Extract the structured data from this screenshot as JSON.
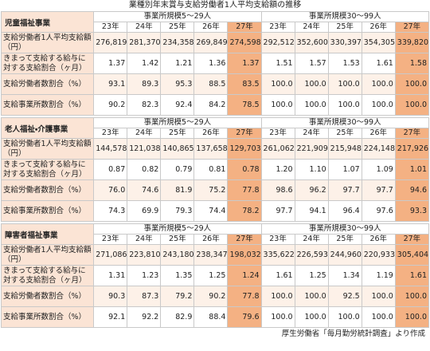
{
  "title": "業種別年末賞与支給労働者1人平均支給額の推移",
  "sections": [
    {
      "name": "児童福祉事業",
      "groups": [
        {
          "name": "事業所規模5～29人",
          "years": [
            "23年",
            "24年",
            "25年",
            "26年",
            "27年"
          ]
        },
        {
          "name": "事業所規模30～99人",
          "years": [
            "23年",
            "24年",
            "25年",
            "26年",
            "27年"
          ]
        }
      ],
      "rows": [
        {
          "label": "支給労働者1人平均支給額（円）",
          "values": [
            "276,819",
            "281,370",
            "234,358",
            "269,849",
            "274,598",
            "292,512",
            "352,600",
            "330,397",
            "354,305",
            "339,820"
          ]
        },
        {
          "label": "きまって支給する給与に対する支給割合（ヶ月）",
          "values": [
            "1.37",
            "1.42",
            "1.21",
            "1.36",
            "1.37",
            "1.51",
            "1.57",
            "1.53",
            "1.61",
            "1.58"
          ]
        },
        {
          "label": "支給労働者数割合（%）",
          "values": [
            "93.1",
            "89.3",
            "95.3",
            "88.5",
            "83.5",
            "100.0",
            "100.0",
            "100.0",
            "100.0",
            "100.0"
          ]
        },
        {
          "label": "支給事業所数割合（%）",
          "values": [
            "90.2",
            "82.3",
            "92.4",
            "84.2",
            "78.5",
            "100.0",
            "100.0",
            "100.0",
            "100.0",
            "100.0"
          ]
        }
      ]
    },
    {
      "name": "老人福祉・介護事業",
      "groups": [
        {
          "name": "事業所規模5～29人",
          "years": [
            "23年",
            "24年",
            "25年",
            "26年",
            "27年"
          ]
        },
        {
          "name": "事業所規模30～99人",
          "years": [
            "23年",
            "24年",
            "25年",
            "26年",
            "27年"
          ]
        }
      ],
      "rows": [
        {
          "label": "支給労働者1人平均支給額（円）",
          "values": [
            "144,578",
            "121,038",
            "140,865",
            "137,658",
            "129,703",
            "261,062",
            "221,909",
            "215,948",
            "224,148",
            "217,926"
          ]
        },
        {
          "label": "きまって支給する給与に対する支給割合（ヶ月）",
          "values": [
            "0.87",
            "0.82",
            "0.79",
            "0.81",
            "0.78",
            "1.20",
            "1.10",
            "1.07",
            "1.09",
            "1.01"
          ]
        },
        {
          "label": "支給労働者数割合（%）",
          "values": [
            "76.0",
            "74.6",
            "81.9",
            "75.2",
            "77.8",
            "98.6",
            "96.2",
            "97.7",
            "97.7",
            "94.6"
          ]
        },
        {
          "label": "支給事業所数割合（%）",
          "values": [
            "74.3",
            "69.9",
            "79.3",
            "74.4",
            "78.2",
            "97.7",
            "94.1",
            "96.4",
            "97.6",
            "93.3"
          ]
        }
      ]
    },
    {
      "name": "障害者福祉事業",
      "groups": [
        {
          "name": "事業所規模5～29人",
          "years": [
            "23年",
            "24年",
            "25年",
            "26年",
            "27年"
          ]
        },
        {
          "name": "事業所規模30～99人",
          "years": [
            "23年",
            "24年",
            "25年",
            "26年",
            "27年"
          ]
        }
      ],
      "rows": [
        {
          "label": "支給労働者1人平均支給額（円）",
          "values": [
            "271,086",
            "223,810",
            "243,180",
            "238,347",
            "198,032",
            "335,622",
            "226,593",
            "244,960",
            "220,933",
            "305,404"
          ]
        },
        {
          "label": "きまって支給する給与に対する支給割合（ヶ月）",
          "values": [
            "1.31",
            "1.23",
            "1.35",
            "1.25",
            "1.24",
            "1.61",
            "1.25",
            "1.34",
            "1.19",
            "1.61"
          ]
        },
        {
          "label": "支給労働者数割合（%）",
          "values": [
            "90.3",
            "87.3",
            "79.2",
            "90.2",
            "77.8",
            "100.0",
            "100.0",
            "92.5",
            "100.0",
            "100.0"
          ]
        },
        {
          "label": "支給事業所数割合（%）",
          "values": [
            "92.1",
            "92.2",
            "82.9",
            "88.4",
            "79.6",
            "100.0",
            "100.0",
            "100.0",
            "100.0",
            "100.0"
          ]
        }
      ]
    }
  ],
  "source": "厚生労働省「毎月勤労統計調査」より作成"
}
